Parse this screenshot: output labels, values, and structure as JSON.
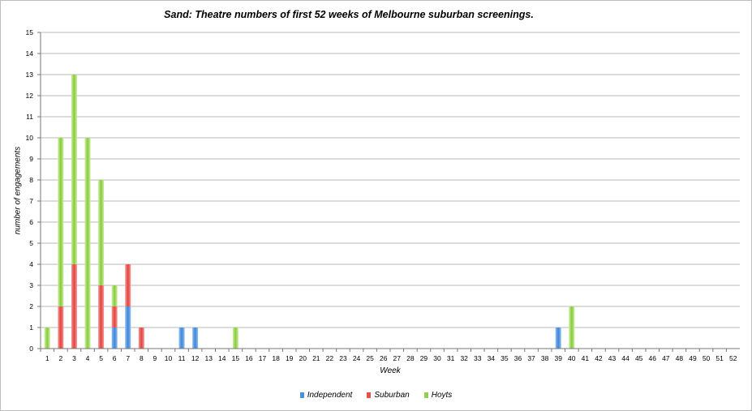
{
  "chart_data": {
    "type": "bar",
    "stacked": true,
    "title": "Sand: Theatre numbers of first 52 weeks of Melbourne suburban screenings.",
    "xlabel": "Week",
    "ylabel": "number of engagements",
    "ylim": [
      0,
      15
    ],
    "yticks": [
      "0",
      "1",
      "2",
      "3",
      "4",
      "5",
      "6",
      "7",
      "8",
      "9",
      "10",
      "11",
      "12",
      "13",
      "14",
      "15"
    ],
    "grid": true,
    "legend_position": "bottom",
    "categories": [
      "1",
      "2",
      "3",
      "4",
      "5",
      "6",
      "7",
      "8",
      "9",
      "10",
      "11",
      "12",
      "13",
      "14",
      "15",
      "16",
      "17",
      "18",
      "19",
      "20",
      "21",
      "22",
      "23",
      "24",
      "25",
      "26",
      "27",
      "28",
      "29",
      "30",
      "31",
      "32",
      "33",
      "34",
      "35",
      "36",
      "37",
      "38",
      "39",
      "40",
      "41",
      "42",
      "43",
      "44",
      "45",
      "46",
      "47",
      "48",
      "49",
      "50",
      "51",
      "52"
    ],
    "series": [
      {
        "name": "Independent",
        "color": "#4a90d9",
        "values": [
          0,
          0,
          0,
          0,
          0,
          1,
          2,
          0,
          0,
          0,
          1,
          1,
          0,
          0,
          0,
          0,
          0,
          0,
          0,
          0,
          0,
          0,
          0,
          0,
          0,
          0,
          0,
          0,
          0,
          0,
          0,
          0,
          0,
          0,
          0,
          0,
          0,
          0,
          1,
          0,
          0,
          0,
          0,
          0,
          0,
          0,
          0,
          0,
          0,
          0,
          0,
          0
        ]
      },
      {
        "name": "Suburban",
        "color": "#e8504a",
        "values": [
          0,
          2,
          4,
          0,
          3,
          1,
          2,
          1,
          0,
          0,
          0,
          0,
          0,
          0,
          0,
          0,
          0,
          0,
          0,
          0,
          0,
          0,
          0,
          0,
          0,
          0,
          0,
          0,
          0,
          0,
          0,
          0,
          0,
          0,
          0,
          0,
          0,
          0,
          0,
          0,
          0,
          0,
          0,
          0,
          0,
          0,
          0,
          0,
          0,
          0,
          0,
          0
        ]
      },
      {
        "name": "Hoyts",
        "color": "#8fd14f",
        "values": [
          1,
          8,
          9,
          10,
          5,
          1,
          0,
          0,
          0,
          0,
          0,
          0,
          0,
          0,
          1,
          0,
          0,
          0,
          0,
          0,
          0,
          0,
          0,
          0,
          0,
          0,
          0,
          0,
          0,
          0,
          0,
          0,
          0,
          0,
          0,
          0,
          0,
          0,
          0,
          2,
          0,
          0,
          0,
          0,
          0,
          0,
          0,
          0,
          0,
          0,
          0,
          0
        ]
      }
    ]
  }
}
